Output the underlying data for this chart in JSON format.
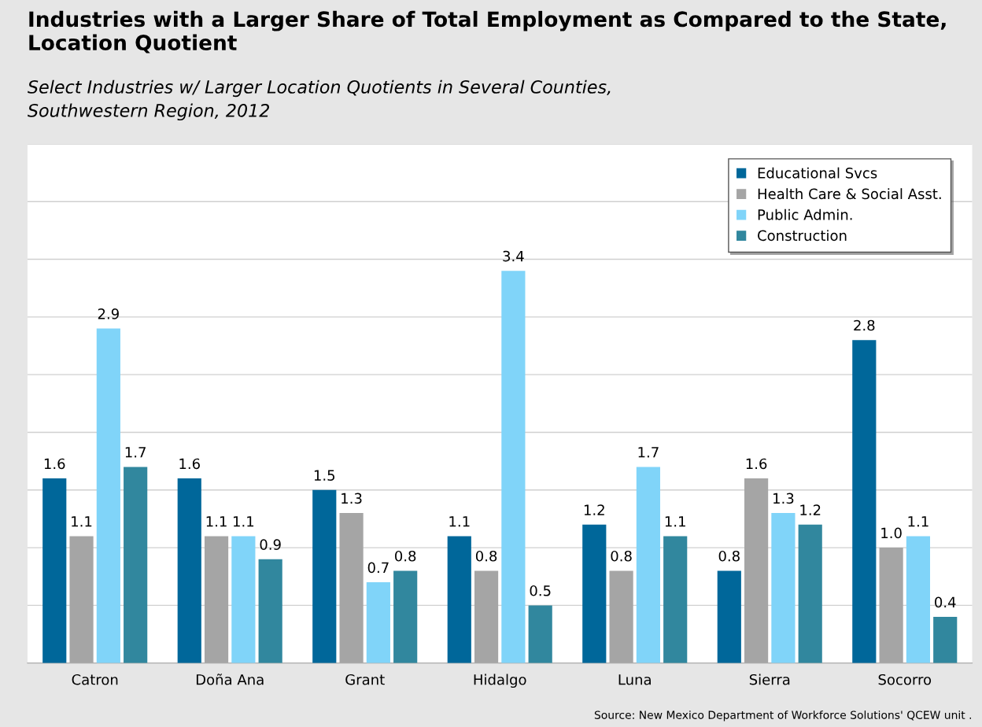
{
  "chart_data": {
    "type": "bar",
    "title": "Industries with a Larger Share of Total Employment as Compared to the State, Location Quotient",
    "subtitle": "Select Industries w/ Larger Location Quotients in Several Counties,\nSouthwestern Region, 2012",
    "categories": [
      "Catron",
      "Doña Ana",
      "Grant",
      "Hidalgo",
      "Luna",
      "Sierra",
      "Socorro"
    ],
    "series": [
      {
        "name": "Educational Svcs",
        "color": "#00679a",
        "values": [
          1.6,
          1.6,
          1.5,
          1.1,
          1.2,
          0.8,
          2.8
        ],
        "value_labels": [
          "1.6",
          "1.6",
          "1.5",
          "1.1",
          "1.2",
          "0.8",
          "2.8"
        ]
      },
      {
        "name": "Health Care & Social Asst.",
        "color": "#a5a5a5",
        "values": [
          1.1,
          1.1,
          1.3,
          0.8,
          0.8,
          1.6,
          1.0
        ],
        "value_labels": [
          "1.1",
          "1.1",
          "1.3",
          "0.8",
          "0.8",
          "1.6",
          "1.0"
        ]
      },
      {
        "name": "Public Admin.",
        "color": "#80d4f9",
        "values": [
          2.9,
          1.1,
          0.7,
          3.4,
          1.7,
          1.3,
          1.1
        ],
        "value_labels": [
          "2.9",
          "1.1",
          "0.7",
          "3.4",
          "1.7",
          "1.3",
          "1.1"
        ]
      },
      {
        "name": "Construction",
        "color": "#31879e",
        "values": [
          1.7,
          0.9,
          0.8,
          0.5,
          1.1,
          1.2,
          0.4
        ],
        "value_labels": [
          "1.7",
          "0.9",
          "0.8",
          "0.5",
          "1.1",
          "1.2",
          "0.4"
        ]
      }
    ],
    "ylim": [
      0,
      4.5
    ],
    "yticks": [
      {
        "value": 0.5,
        "label": null
      },
      {
        "value": 1.0,
        "label": null
      },
      {
        "value": 1.5,
        "label": null
      },
      {
        "value": 2.0,
        "label": null
      },
      {
        "value": 2.5,
        "label": null
      },
      {
        "value": 3.0,
        "label": null
      },
      {
        "value": 3.5,
        "label": null
      },
      {
        "value": 4.0,
        "label": null
      },
      {
        "value": 4.5,
        "label": null
      }
    ],
    "tick_labels": "x",
    "grid": "y",
    "legend": "top right",
    "annotations": [
      "Source: New Mexico Department of Workforce Solutions' QCEW unit ."
    ]
  }
}
